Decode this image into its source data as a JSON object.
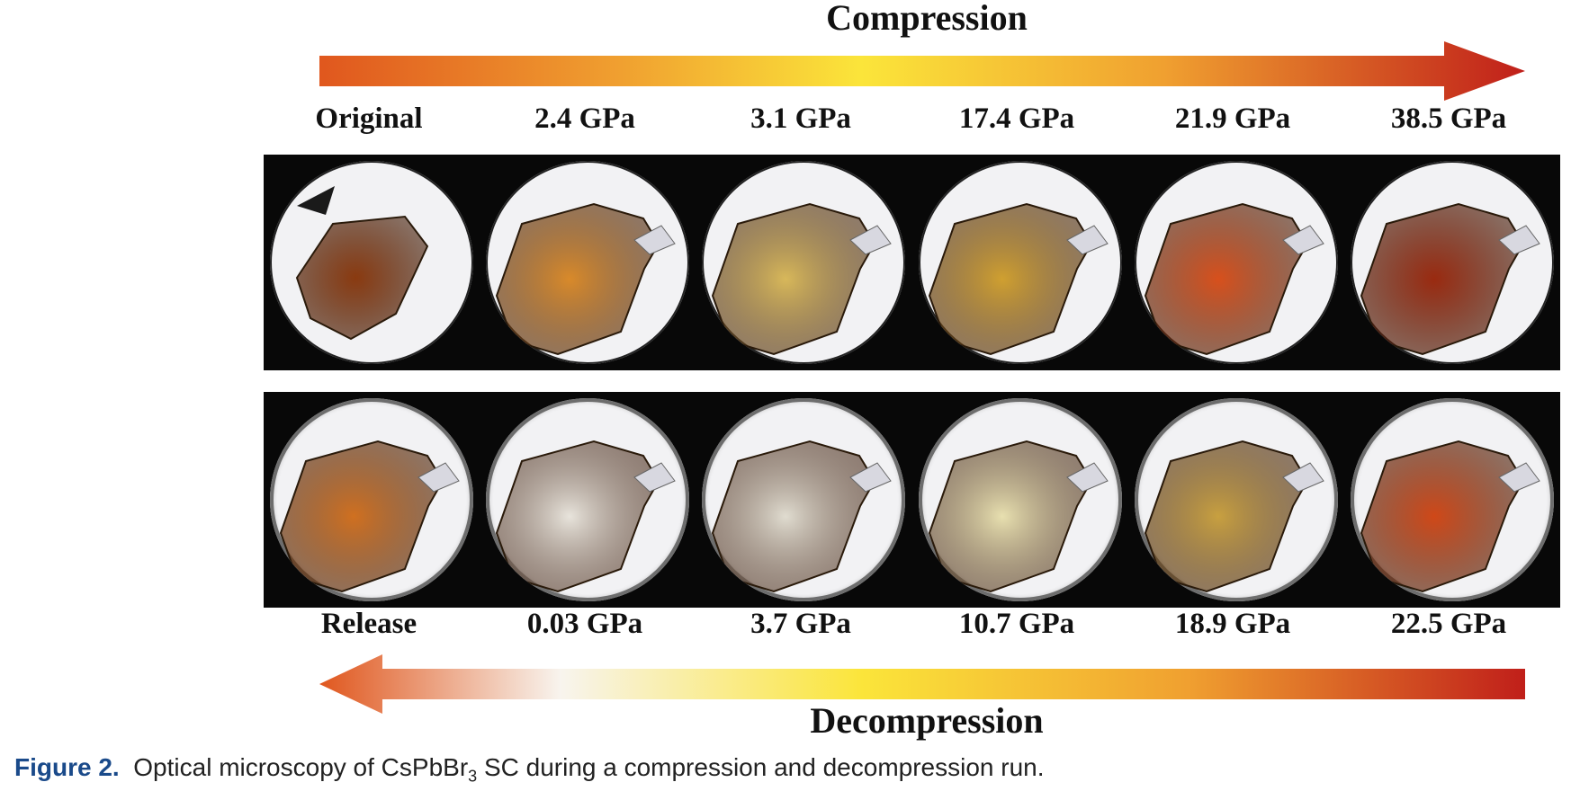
{
  "compression": {
    "title": "Compression",
    "labels": [
      "Original",
      "2.4 GPa",
      "3.1 GPa",
      "17.4 GPa",
      "21.9 GPa",
      "38.5 GPa"
    ],
    "crystal_colors": [
      "#8a3a10",
      "#d98a2a",
      "#d8b85a",
      "#d0a030",
      "#d8501c",
      "#9a2a10"
    ]
  },
  "decompression": {
    "title": "Decompression",
    "labels": [
      "Release",
      "0.03 GPa",
      "3.7 GPa",
      "10.7 GPa",
      "18.9 GPa",
      "22.5 GPa"
    ],
    "crystal_colors": [
      "#d07020",
      "#e8e4dc",
      "#e0dcd0",
      "#e8e0b0",
      "#c8a040",
      "#d04818"
    ]
  },
  "caption": {
    "label": "Figure 2.",
    "text_before": "Optical microscopy of CsPbBr",
    "subscript": "3",
    "text_after": " SC during a compression and decompression run."
  }
}
